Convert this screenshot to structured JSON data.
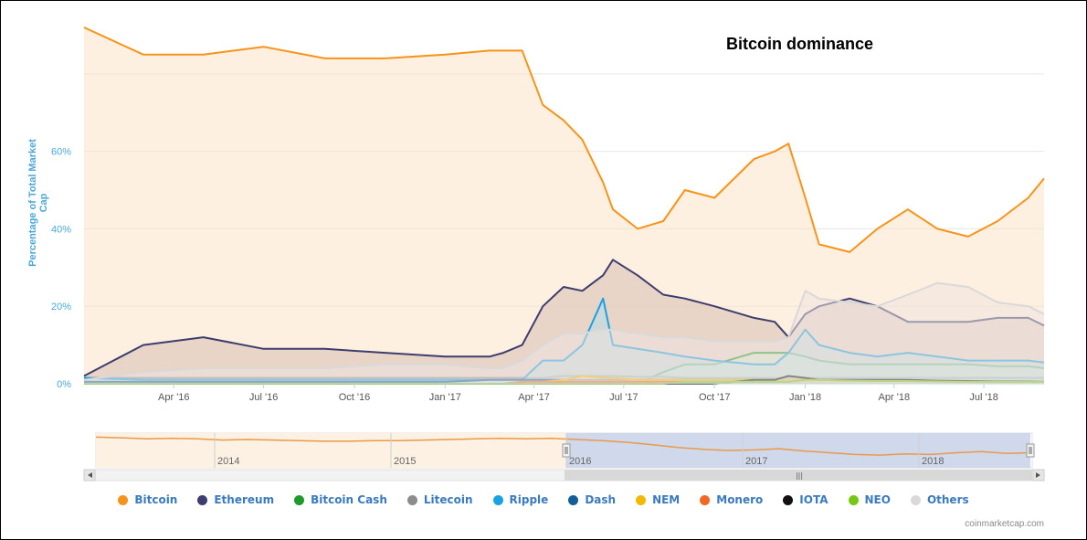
{
  "chart_data": {
    "type": "area",
    "title": "Bitcoin dominance",
    "ylabel": "Percentage of Total Market Cap",
    "y_ticks": [
      "0%",
      "20%",
      "40%",
      "60%"
    ],
    "x_ticks": [
      "Apr '16",
      "Jul '16",
      "Oct '16",
      "Jan '17",
      "Apr '17",
      "Jul '17",
      "Oct '17",
      "Jan '18",
      "Apr '18",
      "Jul '18"
    ],
    "x_dates": [
      "2016-01-01",
      "2016-03-01",
      "2016-05-01",
      "2016-07-01",
      "2016-09-01",
      "2016-11-01",
      "2017-01-01",
      "2017-02-15",
      "2017-03-01",
      "2017-03-20",
      "2017-04-10",
      "2017-05-01",
      "2017-05-20",
      "2017-06-10",
      "2017-06-20",
      "2017-07-15",
      "2017-08-10",
      "2017-09-01",
      "2017-10-01",
      "2017-11-10",
      "2017-12-01",
      "2017-12-15",
      "2018-01-01",
      "2018-01-15",
      "2018-02-15",
      "2018-03-15",
      "2018-04-15",
      "2018-05-15",
      "2018-06-15",
      "2018-07-15",
      "2018-08-15",
      "2018-08-31"
    ],
    "ylim": [
      0,
      92
    ],
    "xlim": [
      "2016-01-01",
      "2018-08-31"
    ],
    "grid": true,
    "legend_position": "bottom",
    "series": [
      {
        "name": "Bitcoin",
        "color": "#f7931a",
        "fill": "#fde3c6",
        "values": [
          92,
          85,
          85,
          87,
          84,
          84,
          85,
          86,
          86,
          86,
          72,
          68,
          63,
          52,
          45,
          40,
          42,
          50,
          48,
          58,
          60,
          62,
          48,
          36,
          34,
          40,
          45,
          40,
          38,
          42,
          48,
          53
        ]
      },
      {
        "name": "Ethereum",
        "color": "#3d3d6e",
        "fill": "#d7c0b3",
        "values": [
          2,
          10,
          12,
          9,
          9,
          8,
          7,
          7,
          8,
          10,
          20,
          25,
          24,
          28,
          32,
          28,
          23,
          22,
          20,
          17,
          16,
          12,
          18,
          20,
          22,
          20,
          16,
          16,
          16,
          17,
          17,
          15
        ]
      },
      {
        "name": "Bitcoin Cash",
        "color": "#1f9a2a",
        "fill": "#cde3c6",
        "values": [
          0,
          0,
          0,
          0,
          0,
          0,
          0,
          0,
          0,
          0,
          0,
          0,
          0,
          0,
          0,
          0,
          3,
          5,
          5,
          8,
          8,
          8,
          7,
          6,
          5,
          5,
          5,
          5,
          5,
          4.5,
          4.5,
          4
        ]
      },
      {
        "name": "Litecoin",
        "color": "#8c8c8c",
        "fill": "#e0d5cc",
        "values": [
          1.5,
          1.5,
          1.5,
          1.5,
          1.5,
          1.5,
          1.5,
          1.5,
          1.5,
          1.5,
          1.5,
          2,
          2,
          2,
          2,
          1.8,
          1.8,
          1.5,
          1.5,
          1.5,
          1.5,
          1.5,
          1.5,
          1.5,
          1.5,
          1.5,
          1.5,
          1.5,
          1.5,
          1.5,
          1.5,
          1.5
        ]
      },
      {
        "name": "Ripple",
        "color": "#1aa1e3",
        "fill": "#b5dde6",
        "values": [
          1.5,
          1,
          1,
          1,
          1,
          1,
          1,
          1,
          1,
          1,
          6,
          6,
          10,
          22,
          10,
          9,
          8,
          7,
          6,
          5,
          5,
          8,
          14,
          10,
          8,
          7,
          8,
          7,
          6,
          6,
          6,
          5.5
        ]
      },
      {
        "name": "Dash",
        "color": "#135e98",
        "fill": "#c3d7e6",
        "values": [
          0.5,
          0.5,
          0.5,
          0.5,
          0.5,
          0.5,
          0.5,
          1,
          1,
          1,
          1,
          1,
          1,
          1,
          1,
          1,
          1,
          1,
          1,
          1,
          1,
          1,
          1,
          1,
          0.8,
          0.7,
          0.6,
          0.6,
          0.6,
          0.6,
          0.5,
          0.5
        ]
      },
      {
        "name": "NEM",
        "color": "#f3b900",
        "fill": "#fbe8b0",
        "values": [
          0,
          0,
          0,
          0,
          0,
          0,
          0,
          0,
          0,
          0,
          0.5,
          1,
          2,
          1.5,
          1.5,
          1,
          1,
          1,
          1,
          1,
          1,
          1,
          1.5,
          1,
          0.8,
          0.6,
          0.5,
          0.5,
          0.4,
          0.4,
          0.3,
          0.3
        ]
      },
      {
        "name": "Monero",
        "color": "#f26822",
        "fill": "#fbd3b8",
        "values": [
          0,
          0,
          0,
          0,
          0,
          0,
          0,
          0,
          0,
          0.5,
          0.5,
          0.5,
          0.5,
          0.5,
          0.5,
          0.5,
          0.5,
          0.5,
          0.5,
          0.5,
          0.5,
          0.5,
          0.5,
          0.5,
          0.5,
          0.5,
          0.5,
          0.5,
          0.5,
          0.5,
          0.5,
          0.5
        ]
      },
      {
        "name": "IOTA",
        "color": "#111111",
        "fill": "#cccccc",
        "values": [
          0,
          0,
          0,
          0,
          0,
          0,
          0,
          0,
          0,
          0,
          0,
          0,
          0,
          0,
          0,
          0,
          0,
          0,
          0,
          1,
          1,
          2,
          1.5,
          1,
          1,
          1,
          1,
          0.8,
          0.7,
          0.6,
          0.6,
          0.5
        ]
      },
      {
        "name": "NEO",
        "color": "#74c815",
        "fill": "#d6efb8",
        "values": [
          0,
          0,
          0,
          0,
          0,
          0,
          0,
          0,
          0,
          0,
          0,
          0,
          0,
          0,
          0,
          0,
          0,
          0.5,
          0.5,
          0.5,
          0.5,
          0.5,
          1,
          1,
          0.8,
          0.7,
          0.7,
          0.6,
          0.5,
          0.5,
          0.5,
          0.5
        ]
      },
      {
        "name": "Others",
        "color": "#d9d9d9",
        "fill": "#ece4e0",
        "values": [
          1,
          3,
          4,
          4,
          4,
          5,
          5,
          4,
          4,
          6,
          10,
          13,
          13,
          14,
          14,
          13,
          12,
          12,
          11,
          11,
          11,
          12,
          24,
          22,
          21,
          20,
          23,
          26,
          25,
          21,
          20,
          18
        ]
      }
    ],
    "navigator": {
      "x_ticks": [
        "2014",
        "2015",
        "2016",
        "2017",
        "2018"
      ],
      "values": [
        93,
        92,
        90,
        91,
        90,
        88,
        89,
        88,
        87,
        86,
        86,
        87,
        87,
        88,
        89,
        90,
        91,
        90,
        91,
        89,
        87,
        84,
        80,
        75,
        72,
        70,
        71,
        73,
        69,
        66,
        63,
        62,
        64,
        63,
        66,
        68,
        65,
        66
      ]
    }
  },
  "credit": "coinmarketcap.com"
}
